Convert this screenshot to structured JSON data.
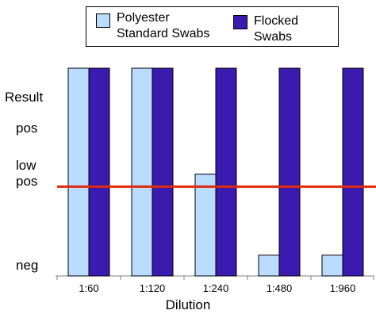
{
  "chart_data": {
    "type": "bar",
    "categories": [
      "1:60",
      "1:120",
      "1:240",
      "1:480",
      "1:960"
    ],
    "series": [
      {
        "name": "Polyester\nStandard Swabs",
        "color": "#b9dcff",
        "values": [
          1.0,
          1.0,
          0.49,
          0.1,
          0.1
        ]
      },
      {
        "name": "Flocked Swabs",
        "color": "#3a1aaf",
        "values": [
          1.0,
          1.0,
          1.0,
          1.0,
          1.0
        ]
      }
    ],
    "y_axis_labels": [
      {
        "text": "Result",
        "value": 0.89
      },
      {
        "text": "pos",
        "value": 0.75
      },
      {
        "text": "low\npos",
        "value": 0.51
      },
      {
        "text": "neg",
        "value": 0.03
      }
    ],
    "threshold": {
      "value": 0.43,
      "color": "#e02a0c"
    },
    "xlabel": "Dilution",
    "ylim": [
      0,
      1
    ],
    "legend_position": "top-right",
    "grid": false
  }
}
